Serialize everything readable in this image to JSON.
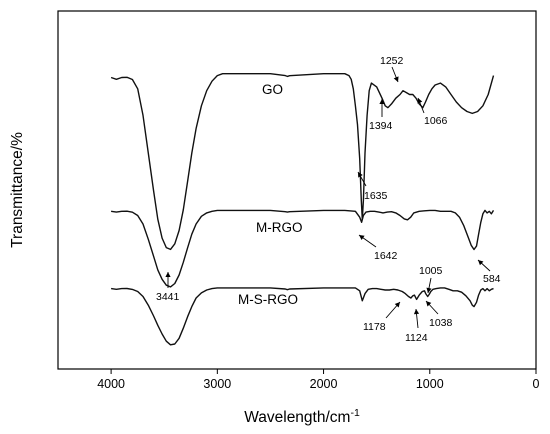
{
  "chart_data": {
    "type": "line",
    "title": "",
    "xlabel": "Wavelength/cm",
    "xlabel_superscript": "-1",
    "ylabel": "Transmittance/%",
    "xlim": [
      4500,
      0
    ],
    "x_reversed": true,
    "x_ticks": [
      "4000",
      "3000",
      "2000",
      "1000",
      "0"
    ],
    "y_ticks_shown": false,
    "grid": false,
    "legend": "none",
    "series": [
      {
        "name": "GO",
        "x": [
          4000,
          3950,
          3900,
          3850,
          3800,
          3750,
          3700,
          3650,
          3600,
          3560,
          3520,
          3480,
          3441,
          3400,
          3360,
          3320,
          3280,
          3240,
          3200,
          3150,
          3100,
          3050,
          3000,
          2950,
          2900,
          2500,
          2360,
          2340,
          2320,
          2000,
          1850,
          1800,
          1760,
          1740,
          1720,
          1700,
          1680,
          1660,
          1645,
          1635,
          1625,
          1610,
          1590,
          1570,
          1550,
          1500,
          1450,
          1420,
          1394,
          1360,
          1320,
          1280,
          1252,
          1220,
          1190,
          1160,
          1130,
          1100,
          1066,
          1040,
          1010,
          980,
          950,
          900,
          850,
          800,
          750,
          700,
          650,
          600,
          550,
          500,
          450,
          400
        ],
        "y": [
          95,
          94,
          95,
          95,
          94,
          89,
          75,
          55,
          35,
          20,
          10,
          5,
          4,
          7,
          14,
          25,
          40,
          55,
          68,
          80,
          88,
          93,
          96,
          97,
          97,
          97,
          96.5,
          95,
          96.5,
          97,
          97,
          97,
          96,
          94,
          89,
          80,
          70,
          52,
          30,
          20,
          30,
          55,
          75,
          88,
          92,
          90,
          84,
          80,
          79,
          81,
          84,
          86,
          88,
          87,
          86,
          86,
          84,
          81,
          79,
          82,
          86,
          89,
          91,
          92,
          90,
          86,
          82,
          79,
          77,
          76,
          77,
          80,
          86,
          96
        ]
      },
      {
        "name": "M-RGO",
        "x": [
          4000,
          3950,
          3900,
          3850,
          3800,
          3750,
          3700,
          3650,
          3600,
          3560,
          3520,
          3480,
          3441,
          3400,
          3360,
          3320,
          3280,
          3240,
          3200,
          3150,
          3100,
          3050,
          3000,
          2950,
          2900,
          2500,
          2360,
          2340,
          2320,
          2000,
          1800,
          1700,
          1660,
          1642,
          1625,
          1600,
          1560,
          1520,
          1480,
          1440,
          1400,
          1360,
          1320,
          1280,
          1240,
          1210,
          1180,
          1150,
          1100,
          1050,
          1000,
          950,
          900,
          850,
          800,
          760,
          720,
          680,
          640,
          610,
          584,
          560,
          540,
          520,
          500,
          480,
          460,
          440,
          420,
          400
        ],
        "y": [
          95,
          94,
          95,
          95,
          94,
          90,
          80,
          62,
          42,
          26,
          15,
          8,
          6,
          10,
          20,
          35,
          52,
          68,
          80,
          89,
          93,
          95,
          96,
          96,
          96,
          96,
          95,
          93.5,
          95,
          96,
          96,
          95,
          88,
          82,
          90,
          94,
          95,
          95,
          94,
          93,
          94,
          94.5,
          93,
          90,
          86,
          85,
          88,
          93,
          95,
          95.5,
          96,
          96,
          95,
          95,
          95,
          93,
          88,
          78,
          65,
          55,
          50,
          54,
          68,
          82,
          92,
          96,
          93,
          95,
          92,
          96
        ]
      },
      {
        "name": "M-S-RGO",
        "x": [
          4000,
          3950,
          3900,
          3850,
          3800,
          3750,
          3700,
          3650,
          3600,
          3560,
          3520,
          3480,
          3441,
          3400,
          3360,
          3320,
          3280,
          3240,
          3200,
          3150,
          3100,
          3050,
          3000,
          2950,
          2900,
          2500,
          2360,
          2340,
          2320,
          2000,
          1800,
          1700,
          1660,
          1635,
          1610,
          1580,
          1540,
          1500,
          1460,
          1420,
          1380,
          1340,
          1300,
          1260,
          1230,
          1200,
          1178,
          1160,
          1145,
          1124,
          1100,
          1070,
          1050,
          1038,
          1020,
          1005,
          990,
          970,
          940,
          900,
          860,
          820,
          780,
          740,
          700,
          660,
          620,
          600,
          584,
          560,
          540,
          520,
          500,
          480,
          460,
          440,
          420,
          400
        ],
        "y": [
          95,
          94,
          95,
          95,
          94,
          91,
          84,
          72,
          57,
          44,
          32,
          22,
          17,
          18,
          26,
          40,
          56,
          70,
          82,
          89,
          93,
          95,
          96,
          96,
          96,
          96,
          95,
          93,
          95,
          96,
          96,
          96,
          92,
          78,
          88,
          94,
          95,
          95,
          94,
          93,
          93,
          94,
          93,
          91,
          88,
          84,
          82,
          85,
          86,
          80,
          86,
          91,
          92,
          88,
          84,
          87,
          91,
          94,
          95,
          96,
          96,
          94,
          92,
          92,
          90,
          85,
          78,
          72,
          70,
          76,
          86,
          93,
          95,
          92,
          95,
          92,
          94,
          95
        ]
      }
    ],
    "series_labels": [
      "GO",
      "M-RGO",
      "M-S-RGO"
    ],
    "annotations": [
      {
        "label": "1252"
      },
      {
        "label": "1394"
      },
      {
        "label": "1066"
      },
      {
        "label": "1635"
      },
      {
        "label": "1642"
      },
      {
        "label": "3441"
      },
      {
        "label": "1005"
      },
      {
        "label": "584"
      },
      {
        "label": "1178"
      },
      {
        "label": "1124"
      },
      {
        "label": "1038"
      }
    ]
  }
}
